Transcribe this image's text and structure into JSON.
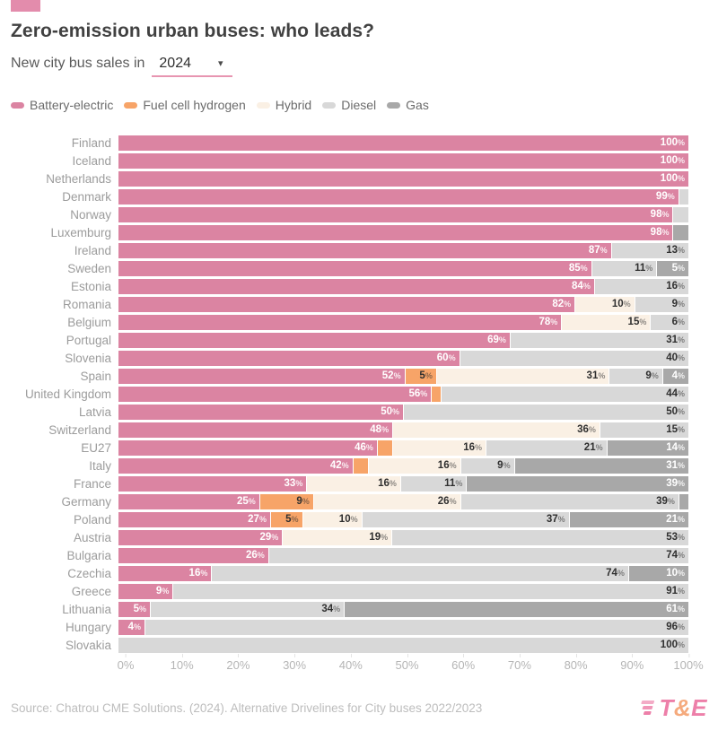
{
  "header": {
    "title": "Zero-emission urban buses: who leads?",
    "subtitle_prefix": "New city bus sales in",
    "year": "2024"
  },
  "icons": {
    "dropdown_caret": "▾"
  },
  "colors": {
    "accent_pink": "#db84a2",
    "fuel_cell_orange": "#f7a468",
    "hybrid_cream": "#faf0e4",
    "diesel_gray": "#d8d8d8",
    "gas_gray": "#a8a8a8",
    "underline_pink": "#e795b1"
  },
  "legend": [
    {
      "key": "be",
      "label": "Battery-electric",
      "color": "#db84a2",
      "label_color": "#ffffff"
    },
    {
      "key": "fc",
      "label": "Fuel cell hydrogen",
      "color": "#f7a468",
      "label_color": "#2f2f2f"
    },
    {
      "key": "hy",
      "label": "Hybrid",
      "color": "#faf0e4",
      "label_color": "#2f2f2f"
    },
    {
      "key": "di",
      "label": "Diesel",
      "color": "#d8d8d8",
      "label_color": "#2f2f2f"
    },
    {
      "key": "ga",
      "label": "Gas",
      "color": "#a8a8a8",
      "label_color": "#ffffff"
    }
  ],
  "chart_data": {
    "type": "bar",
    "orientation": "horizontal",
    "stacked": true,
    "unit": "percent",
    "xlim": [
      0,
      100
    ],
    "x_ticks": [
      "0%",
      "10%",
      "20%",
      "30%",
      "40%",
      "50%",
      "60%",
      "70%",
      "80%",
      "90%",
      "100%"
    ],
    "series_names": [
      "Battery-electric",
      "Fuel cell hydrogen",
      "Hybrid",
      "Diesel",
      "Gas"
    ],
    "rows": [
      {
        "country": "Finland",
        "segments": [
          {
            "key": "be",
            "value": 100,
            "label": "100%"
          }
        ]
      },
      {
        "country": "Iceland",
        "segments": [
          {
            "key": "be",
            "value": 100,
            "label": "100%"
          }
        ]
      },
      {
        "country": "Netherlands",
        "segments": [
          {
            "key": "be",
            "value": 100,
            "label": "100%"
          }
        ]
      },
      {
        "country": "Denmark",
        "segments": [
          {
            "key": "be",
            "value": 99,
            "label": "99%"
          },
          {
            "key": "di",
            "value": 1,
            "label": null
          }
        ]
      },
      {
        "country": "Norway",
        "segments": [
          {
            "key": "be",
            "value": 98,
            "label": "98%"
          },
          {
            "key": "di",
            "value": 2,
            "label": null
          }
        ]
      },
      {
        "country": "Luxemburg",
        "segments": [
          {
            "key": "be",
            "value": 98,
            "label": "98%"
          },
          {
            "key": "ga",
            "value": 2,
            "label": null
          }
        ]
      },
      {
        "country": "Ireland",
        "segments": [
          {
            "key": "be",
            "value": 87,
            "label": "87%"
          },
          {
            "key": "di",
            "value": 13,
            "label": "13%"
          }
        ]
      },
      {
        "country": "Sweden",
        "segments": [
          {
            "key": "be",
            "value": 85,
            "label": "85%"
          },
          {
            "key": "di",
            "value": 11,
            "label": "11%"
          },
          {
            "key": "ga",
            "value": 5,
            "label": "5%"
          }
        ]
      },
      {
        "country": "Estonia",
        "segments": [
          {
            "key": "be",
            "value": 84,
            "label": "84%"
          },
          {
            "key": "di",
            "value": 16,
            "label": "16%"
          }
        ]
      },
      {
        "country": "Romania",
        "segments": [
          {
            "key": "be",
            "value": 82,
            "label": "82%"
          },
          {
            "key": "hy",
            "value": 10,
            "label": "10%"
          },
          {
            "key": "di",
            "value": 9,
            "label": "9%"
          }
        ]
      },
      {
        "country": "Belgium",
        "segments": [
          {
            "key": "be",
            "value": 78,
            "label": "78%"
          },
          {
            "key": "hy",
            "value": 15,
            "label": "15%"
          },
          {
            "key": "di",
            "value": 6,
            "label": "6%"
          }
        ]
      },
      {
        "country": "Portugal",
        "segments": [
          {
            "key": "be",
            "value": 69,
            "label": "69%"
          },
          {
            "key": "di",
            "value": 31,
            "label": "31%"
          }
        ]
      },
      {
        "country": "Slovenia",
        "segments": [
          {
            "key": "be",
            "value": 60,
            "label": "60%"
          },
          {
            "key": "di",
            "value": 40,
            "label": "40%"
          }
        ]
      },
      {
        "country": "Spain",
        "segments": [
          {
            "key": "be",
            "value": 52,
            "label": "52%"
          },
          {
            "key": "fc",
            "value": 5,
            "label": "5%"
          },
          {
            "key": "hy",
            "value": 31,
            "label": "31%"
          },
          {
            "key": "di",
            "value": 9,
            "label": "9%"
          },
          {
            "key": "ga",
            "value": 4,
            "label": "4%"
          }
        ]
      },
      {
        "country": "United Kingdom",
        "segments": [
          {
            "key": "be",
            "value": 56,
            "label": "56%"
          },
          {
            "key": "fc",
            "value": 1,
            "label": null
          },
          {
            "key": "di",
            "value": 44,
            "label": "44%"
          }
        ]
      },
      {
        "country": "Latvia",
        "segments": [
          {
            "key": "be",
            "value": 50,
            "label": "50%"
          },
          {
            "key": "di",
            "value": 50,
            "label": "50%"
          }
        ]
      },
      {
        "country": "Switzerland",
        "segments": [
          {
            "key": "be",
            "value": 48,
            "label": "48%"
          },
          {
            "key": "hy",
            "value": 36,
            "label": "36%"
          },
          {
            "key": "di",
            "value": 15,
            "label": "15%"
          }
        ]
      },
      {
        "country": "EU27",
        "segments": [
          {
            "key": "be",
            "value": 46,
            "label": "46%"
          },
          {
            "key": "fc",
            "value": 2,
            "label": null
          },
          {
            "key": "hy",
            "value": 16,
            "label": "16%"
          },
          {
            "key": "di",
            "value": 21,
            "label": "21%"
          },
          {
            "key": "ga",
            "value": 14,
            "label": "14%"
          }
        ]
      },
      {
        "country": "Italy",
        "segments": [
          {
            "key": "be",
            "value": 42,
            "label": "42%"
          },
          {
            "key": "fc",
            "value": 2,
            "label": null
          },
          {
            "key": "hy",
            "value": 16,
            "label": "16%"
          },
          {
            "key": "di",
            "value": 9,
            "label": "9%"
          },
          {
            "key": "ga",
            "value": 31,
            "label": "31%"
          }
        ]
      },
      {
        "country": "France",
        "segments": [
          {
            "key": "be",
            "value": 33,
            "label": "33%"
          },
          {
            "key": "hy",
            "value": 16,
            "label": "16%"
          },
          {
            "key": "di",
            "value": 11,
            "label": "11%"
          },
          {
            "key": "ga",
            "value": 39,
            "label": "39%"
          }
        ]
      },
      {
        "country": "Germany",
        "segments": [
          {
            "key": "be",
            "value": 25,
            "label": "25%"
          },
          {
            "key": "fc",
            "value": 9,
            "label": "9%"
          },
          {
            "key": "hy",
            "value": 26,
            "label": "26%"
          },
          {
            "key": "di",
            "value": 39,
            "label": "39%"
          },
          {
            "key": "ga",
            "value": 1,
            "label": null
          }
        ]
      },
      {
        "country": "Poland",
        "segments": [
          {
            "key": "be",
            "value": 27,
            "label": "27%"
          },
          {
            "key": "fc",
            "value": 5,
            "label": "5%"
          },
          {
            "key": "hy",
            "value": 10,
            "label": "10%"
          },
          {
            "key": "di",
            "value": 37,
            "label": "37%"
          },
          {
            "key": "ga",
            "value": 21,
            "label": "21%"
          }
        ]
      },
      {
        "country": "Austria",
        "segments": [
          {
            "key": "be",
            "value": 29,
            "label": "29%"
          },
          {
            "key": "hy",
            "value": 19,
            "label": "19%"
          },
          {
            "key": "di",
            "value": 53,
            "label": "53%"
          }
        ]
      },
      {
        "country": "Bulgaria",
        "segments": [
          {
            "key": "be",
            "value": 26,
            "label": "26%"
          },
          {
            "key": "di",
            "value": 74,
            "label": "74%"
          }
        ]
      },
      {
        "country": "Czechia",
        "segments": [
          {
            "key": "be",
            "value": 16,
            "label": "16%"
          },
          {
            "key": "di",
            "value": 74,
            "label": "74%"
          },
          {
            "key": "ga",
            "value": 10,
            "label": "10%"
          }
        ]
      },
      {
        "country": "Greece",
        "segments": [
          {
            "key": "be",
            "value": 9,
            "label": "9%"
          },
          {
            "key": "di",
            "value": 91,
            "label": "91%"
          }
        ]
      },
      {
        "country": "Lithuania",
        "segments": [
          {
            "key": "be",
            "value": 5,
            "label": "5%"
          },
          {
            "key": "di",
            "value": 34,
            "label": "34%"
          },
          {
            "key": "ga",
            "value": 61,
            "label": "61%"
          }
        ]
      },
      {
        "country": "Hungary",
        "segments": [
          {
            "key": "be",
            "value": 4,
            "label": "4%"
          },
          {
            "key": "di",
            "value": 96,
            "label": "96%"
          }
        ]
      },
      {
        "country": "Slovakia",
        "segments": [
          {
            "key": "di",
            "value": 100,
            "label": "100%"
          }
        ]
      }
    ]
  },
  "footer": {
    "source": "Source: Chatrou CME Solutions. (2024). Alternative Drivelines for City buses 2022/2023",
    "logo": {
      "t": "T",
      "amp": "&",
      "e": "E"
    }
  }
}
